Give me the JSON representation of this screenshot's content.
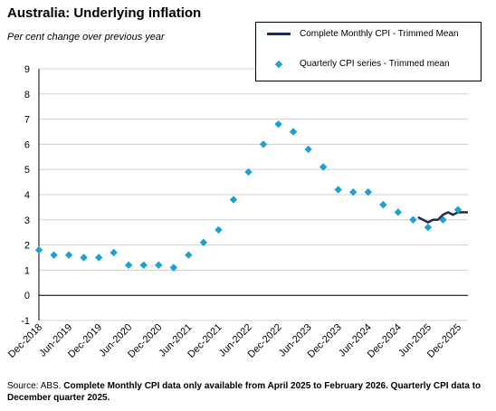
{
  "title": "Australia: Underlying inflation",
  "subtitle": "Per cent change over previous year",
  "legend": {
    "line_label": "Complete Monthly CPI - Trimmed Mean",
    "marker_label": "Quarterly CPI series - Trimmed mean"
  },
  "footer": {
    "source": "Source: ABS.",
    "note": "Complete Monthly CPI data only available from April 2025 to February 2026. Quarterly CPI data to December quarter 2025."
  },
  "colors": {
    "monthly_line": "#1f2f4a",
    "quarterly_marker": "#1ea0d2",
    "grid": "#d0d0d0"
  },
  "chart_data": {
    "type": "line",
    "title": "Australia: Underlying inflation",
    "ylabel": "Per cent change over previous year",
    "ylim": [
      -1,
      9
    ],
    "yticks": [
      -1,
      0,
      1,
      2,
      3,
      4,
      5,
      6,
      7,
      8,
      9
    ],
    "grid": true,
    "xticklabels": [
      "Dec-2018",
      "Jun-2019",
      "Dec-2019",
      "Jun-2020",
      "Dec-2020",
      "Jun-2021",
      "Dec-2021",
      "Jun-2022",
      "Dec-2022",
      "Jun-2023",
      "Dec-2023",
      "Jun-2024",
      "Dec-2024",
      "Jun-2025",
      "Dec-2025"
    ],
    "series": [
      {
        "name": "Quarterly CPI series - Trimmed mean",
        "kind": "marker",
        "x": [
          "Dec-2018",
          "Mar-2019",
          "Jun-2019",
          "Sep-2019",
          "Dec-2019",
          "Mar-2020",
          "Jun-2020",
          "Sep-2020",
          "Dec-2020",
          "Mar-2021",
          "Jun-2021",
          "Sep-2021",
          "Dec-2021",
          "Mar-2022",
          "Jun-2022",
          "Sep-2022",
          "Dec-2022",
          "Mar-2023",
          "Jun-2023",
          "Sep-2023",
          "Dec-2023",
          "Mar-2024",
          "Jun-2024",
          "Sep-2024",
          "Dec-2024",
          "Mar-2025",
          "Jun-2025",
          "Sep-2025",
          "Dec-2025"
        ],
        "values": [
          1.8,
          1.6,
          1.6,
          1.5,
          1.5,
          1.7,
          1.2,
          1.2,
          1.2,
          1.1,
          1.6,
          2.1,
          2.6,
          3.8,
          4.9,
          6.0,
          6.8,
          6.5,
          5.8,
          5.1,
          4.2,
          4.1,
          4.1,
          3.6,
          3.3,
          3.0,
          2.7,
          3.0,
          3.4
        ]
      },
      {
        "name": "Complete Monthly CPI - Trimmed Mean",
        "kind": "line",
        "x": [
          "Apr-2025",
          "May-2025",
          "Jun-2025",
          "Jul-2025",
          "Aug-2025",
          "Sep-2025",
          "Oct-2025",
          "Nov-2025",
          "Dec-2025",
          "Jan-2026",
          "Feb-2026"
        ],
        "values": [
          3.1,
          3.0,
          2.9,
          3.0,
          3.0,
          3.2,
          3.3,
          3.2,
          3.3,
          3.3,
          3.3
        ]
      }
    ]
  }
}
